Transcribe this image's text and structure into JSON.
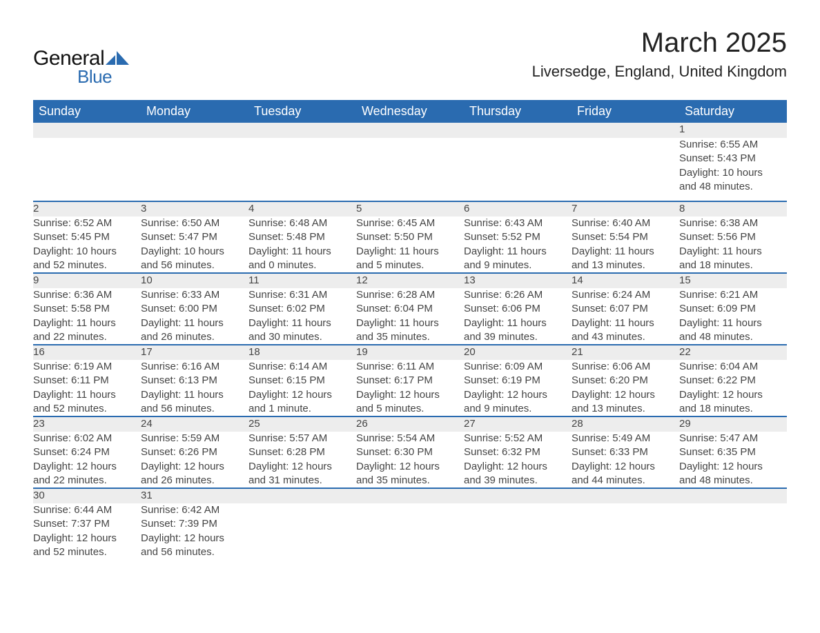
{
  "logo": {
    "general": "General",
    "blue": "Blue"
  },
  "title": "March 2025",
  "location": "Liversedge, England, United Kingdom",
  "colors": {
    "header_bg": "#2a6bb0",
    "header_text": "#ffffff",
    "daynum_bg": "#ededed",
    "row_separator": "#2a6bb0",
    "body_text": "#444444",
    "logo_blue": "#2a6bb0",
    "logo_black": "#111111",
    "page_bg": "#ffffff"
  },
  "typography": {
    "title_fontsize": 40,
    "location_fontsize": 22,
    "header_fontsize": 18,
    "daynum_fontsize": 17,
    "cell_fontsize": 15
  },
  "weekdays": [
    "Sunday",
    "Monday",
    "Tuesday",
    "Wednesday",
    "Thursday",
    "Friday",
    "Saturday"
  ],
  "weeks": [
    [
      null,
      null,
      null,
      null,
      null,
      null,
      {
        "day": "1",
        "sunrise": "Sunrise: 6:55 AM",
        "sunset": "Sunset: 5:43 PM",
        "daylight1": "Daylight: 10 hours",
        "daylight2": "and 48 minutes."
      }
    ],
    [
      {
        "day": "2",
        "sunrise": "Sunrise: 6:52 AM",
        "sunset": "Sunset: 5:45 PM",
        "daylight1": "Daylight: 10 hours",
        "daylight2": "and 52 minutes."
      },
      {
        "day": "3",
        "sunrise": "Sunrise: 6:50 AM",
        "sunset": "Sunset: 5:47 PM",
        "daylight1": "Daylight: 10 hours",
        "daylight2": "and 56 minutes."
      },
      {
        "day": "4",
        "sunrise": "Sunrise: 6:48 AM",
        "sunset": "Sunset: 5:48 PM",
        "daylight1": "Daylight: 11 hours",
        "daylight2": "and 0 minutes."
      },
      {
        "day": "5",
        "sunrise": "Sunrise: 6:45 AM",
        "sunset": "Sunset: 5:50 PM",
        "daylight1": "Daylight: 11 hours",
        "daylight2": "and 5 minutes."
      },
      {
        "day": "6",
        "sunrise": "Sunrise: 6:43 AM",
        "sunset": "Sunset: 5:52 PM",
        "daylight1": "Daylight: 11 hours",
        "daylight2": "and 9 minutes."
      },
      {
        "day": "7",
        "sunrise": "Sunrise: 6:40 AM",
        "sunset": "Sunset: 5:54 PM",
        "daylight1": "Daylight: 11 hours",
        "daylight2": "and 13 minutes."
      },
      {
        "day": "8",
        "sunrise": "Sunrise: 6:38 AM",
        "sunset": "Sunset: 5:56 PM",
        "daylight1": "Daylight: 11 hours",
        "daylight2": "and 18 minutes."
      }
    ],
    [
      {
        "day": "9",
        "sunrise": "Sunrise: 6:36 AM",
        "sunset": "Sunset: 5:58 PM",
        "daylight1": "Daylight: 11 hours",
        "daylight2": "and 22 minutes."
      },
      {
        "day": "10",
        "sunrise": "Sunrise: 6:33 AM",
        "sunset": "Sunset: 6:00 PM",
        "daylight1": "Daylight: 11 hours",
        "daylight2": "and 26 minutes."
      },
      {
        "day": "11",
        "sunrise": "Sunrise: 6:31 AM",
        "sunset": "Sunset: 6:02 PM",
        "daylight1": "Daylight: 11 hours",
        "daylight2": "and 30 minutes."
      },
      {
        "day": "12",
        "sunrise": "Sunrise: 6:28 AM",
        "sunset": "Sunset: 6:04 PM",
        "daylight1": "Daylight: 11 hours",
        "daylight2": "and 35 minutes."
      },
      {
        "day": "13",
        "sunrise": "Sunrise: 6:26 AM",
        "sunset": "Sunset: 6:06 PM",
        "daylight1": "Daylight: 11 hours",
        "daylight2": "and 39 minutes."
      },
      {
        "day": "14",
        "sunrise": "Sunrise: 6:24 AM",
        "sunset": "Sunset: 6:07 PM",
        "daylight1": "Daylight: 11 hours",
        "daylight2": "and 43 minutes."
      },
      {
        "day": "15",
        "sunrise": "Sunrise: 6:21 AM",
        "sunset": "Sunset: 6:09 PM",
        "daylight1": "Daylight: 11 hours",
        "daylight2": "and 48 minutes."
      }
    ],
    [
      {
        "day": "16",
        "sunrise": "Sunrise: 6:19 AM",
        "sunset": "Sunset: 6:11 PM",
        "daylight1": "Daylight: 11 hours",
        "daylight2": "and 52 minutes."
      },
      {
        "day": "17",
        "sunrise": "Sunrise: 6:16 AM",
        "sunset": "Sunset: 6:13 PM",
        "daylight1": "Daylight: 11 hours",
        "daylight2": "and 56 minutes."
      },
      {
        "day": "18",
        "sunrise": "Sunrise: 6:14 AM",
        "sunset": "Sunset: 6:15 PM",
        "daylight1": "Daylight: 12 hours",
        "daylight2": "and 1 minute."
      },
      {
        "day": "19",
        "sunrise": "Sunrise: 6:11 AM",
        "sunset": "Sunset: 6:17 PM",
        "daylight1": "Daylight: 12 hours",
        "daylight2": "and 5 minutes."
      },
      {
        "day": "20",
        "sunrise": "Sunrise: 6:09 AM",
        "sunset": "Sunset: 6:19 PM",
        "daylight1": "Daylight: 12 hours",
        "daylight2": "and 9 minutes."
      },
      {
        "day": "21",
        "sunrise": "Sunrise: 6:06 AM",
        "sunset": "Sunset: 6:20 PM",
        "daylight1": "Daylight: 12 hours",
        "daylight2": "and 13 minutes."
      },
      {
        "day": "22",
        "sunrise": "Sunrise: 6:04 AM",
        "sunset": "Sunset: 6:22 PM",
        "daylight1": "Daylight: 12 hours",
        "daylight2": "and 18 minutes."
      }
    ],
    [
      {
        "day": "23",
        "sunrise": "Sunrise: 6:02 AM",
        "sunset": "Sunset: 6:24 PM",
        "daylight1": "Daylight: 12 hours",
        "daylight2": "and 22 minutes."
      },
      {
        "day": "24",
        "sunrise": "Sunrise: 5:59 AM",
        "sunset": "Sunset: 6:26 PM",
        "daylight1": "Daylight: 12 hours",
        "daylight2": "and 26 minutes."
      },
      {
        "day": "25",
        "sunrise": "Sunrise: 5:57 AM",
        "sunset": "Sunset: 6:28 PM",
        "daylight1": "Daylight: 12 hours",
        "daylight2": "and 31 minutes."
      },
      {
        "day": "26",
        "sunrise": "Sunrise: 5:54 AM",
        "sunset": "Sunset: 6:30 PM",
        "daylight1": "Daylight: 12 hours",
        "daylight2": "and 35 minutes."
      },
      {
        "day": "27",
        "sunrise": "Sunrise: 5:52 AM",
        "sunset": "Sunset: 6:32 PM",
        "daylight1": "Daylight: 12 hours",
        "daylight2": "and 39 minutes."
      },
      {
        "day": "28",
        "sunrise": "Sunrise: 5:49 AM",
        "sunset": "Sunset: 6:33 PM",
        "daylight1": "Daylight: 12 hours",
        "daylight2": "and 44 minutes."
      },
      {
        "day": "29",
        "sunrise": "Sunrise: 5:47 AM",
        "sunset": "Sunset: 6:35 PM",
        "daylight1": "Daylight: 12 hours",
        "daylight2": "and 48 minutes."
      }
    ],
    [
      {
        "day": "30",
        "sunrise": "Sunrise: 6:44 AM",
        "sunset": "Sunset: 7:37 PM",
        "daylight1": "Daylight: 12 hours",
        "daylight2": "and 52 minutes."
      },
      {
        "day": "31",
        "sunrise": "Sunrise: 6:42 AM",
        "sunset": "Sunset: 7:39 PM",
        "daylight1": "Daylight: 12 hours",
        "daylight2": "and 56 minutes."
      },
      null,
      null,
      null,
      null,
      null
    ]
  ]
}
